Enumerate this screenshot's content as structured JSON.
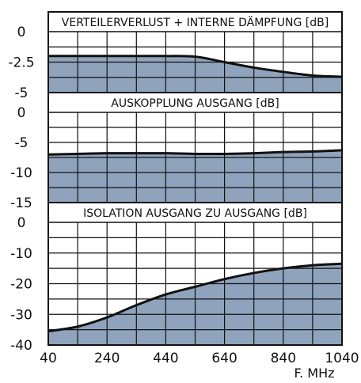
{
  "chart_data": {
    "type": "area",
    "xlabel": "F. MHz",
    "x_ticks": [
      "40",
      "240",
      "440",
      "640",
      "840",
      "1040"
    ],
    "xlim": [
      40,
      1040
    ],
    "fill_color": "#8fa3bc",
    "line_color": "#111111",
    "grid": true,
    "panels": [
      {
        "title": "VERTEILERVERLUST + INTERNE DÄMPFUNG [dB]",
        "ylim": [
          -5,
          0
        ],
        "y_ticks": [
          "0",
          "-2.5",
          "-5"
        ],
        "series": [
          {
            "x": [
              40,
              140,
              240,
              340,
              440,
              540,
              640,
              740,
              840,
              940,
              1040
            ],
            "y": [
              -2.0,
              -2.0,
              -2.0,
              -2.0,
              -2.0,
              -2.05,
              -2.5,
              -2.95,
              -3.3,
              -3.6,
              -3.7
            ]
          }
        ]
      },
      {
        "title": "AUSKOPPLUNG AUSGANG [dB]",
        "ylim": [
          -15,
          0
        ],
        "y_ticks": [
          "0",
          "-5",
          "-10",
          "-15"
        ],
        "series": [
          {
            "x": [
              40,
              140,
              240,
              340,
              440,
              540,
              640,
              740,
              840,
              940,
              1040
            ],
            "y": [
              -7.0,
              -6.9,
              -6.8,
              -6.8,
              -6.8,
              -6.9,
              -6.9,
              -6.8,
              -6.6,
              -6.5,
              -6.3
            ]
          }
        ]
      },
      {
        "title": "ISOLATION AUSGANG ZU AUSGANG [dB]",
        "ylim": [
          -40,
          0
        ],
        "y_ticks": [
          "0",
          "-10",
          "-20",
          "-30",
          "-40"
        ],
        "series": [
          {
            "x": [
              40,
              140,
              240,
              340,
              440,
              540,
              640,
              740,
              840,
              940,
              1040
            ],
            "y": [
              -35.5,
              -34.0,
              -31.0,
              -27.0,
              -23.5,
              -21.0,
              -18.5,
              -16.5,
              -15.0,
              -14.0,
              -13.5
            ]
          }
        ]
      }
    ]
  }
}
